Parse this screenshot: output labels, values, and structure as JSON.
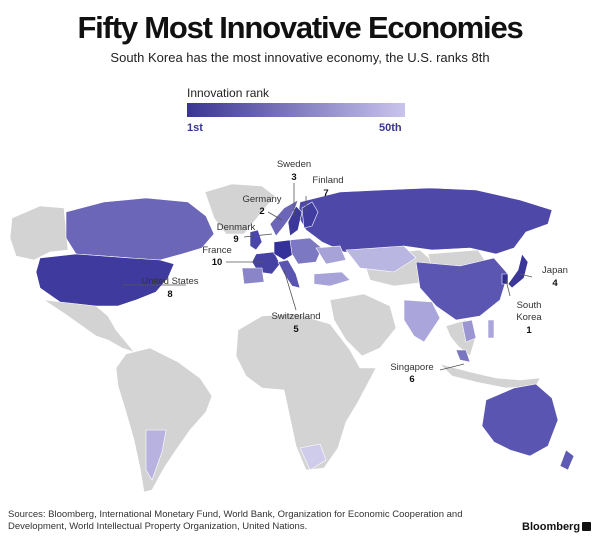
{
  "title": "Fifty Most Innovative Economies",
  "subtitle": "South Korea has the most innovative economy, the U.S. ranks 8th",
  "legend": {
    "title": "Innovation rank",
    "min_label": "1st",
    "max_label": "50th",
    "color_best": "#3a3592",
    "color_worst": "#c9c4ec",
    "color_unranked": "#d3d3d3"
  },
  "callouts": [
    {
      "name": "Sweden",
      "rank": "3"
    },
    {
      "name": "Finland",
      "rank": "7"
    },
    {
      "name": "Germany",
      "rank": "2"
    },
    {
      "name": "Denmark",
      "rank": "9"
    },
    {
      "name": "France",
      "rank": "10"
    },
    {
      "name": "United States",
      "rank": "8"
    },
    {
      "name": "Switzerland",
      "rank": "5"
    },
    {
      "name": "Japan",
      "rank": "4"
    },
    {
      "name": "South Korea",
      "rank": "1"
    },
    {
      "name": "Singapore",
      "rank": "6"
    }
  ],
  "source": "Sources: Bloomberg, International Monetary Fund, World Bank, Organization for Economic Cooperation and Development, World Intellectual Property Organization, United Nations.",
  "brand": "Bloomberg"
}
